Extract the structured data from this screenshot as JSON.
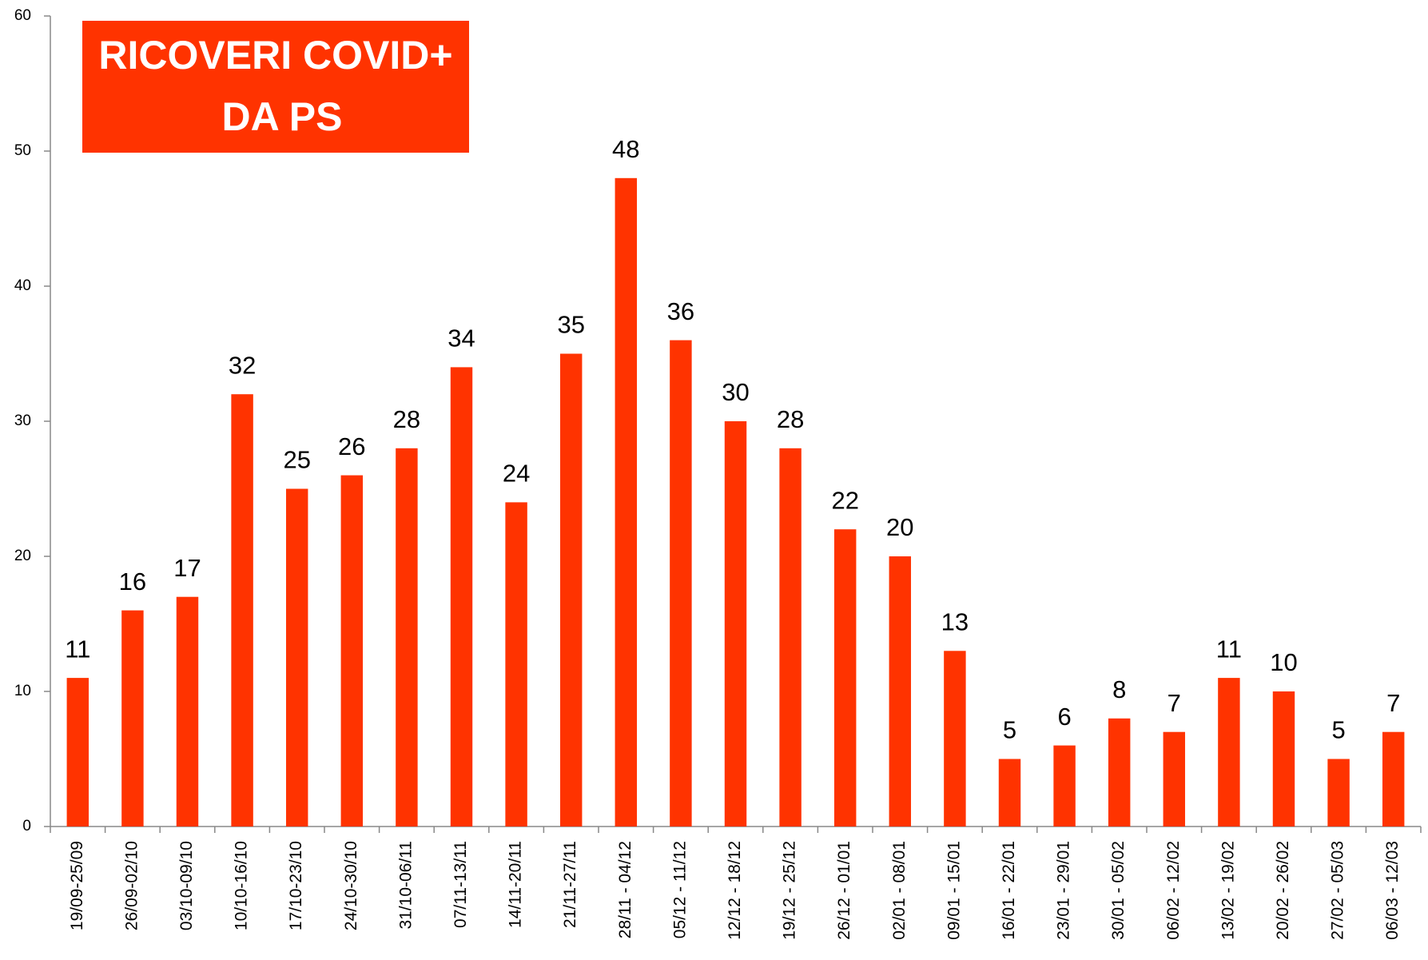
{
  "chart_data": {
    "type": "bar",
    "title": [
      "RICOVERI COVID+",
      "DA PS"
    ],
    "categories": [
      "19/09-25/09",
      "26/09-02/10",
      "03/10-09/10",
      "10/10-16/10",
      "17/10-23/10",
      "24/10-30/10",
      "31/10-06/11",
      "07/11-13/11",
      "14/11-20/11",
      "21/11-27/11",
      "28/11 - 04/12",
      "05/12 - 11/12",
      "12/12 - 18/12",
      "19/12 - 25/12",
      "26/12 - 01/01",
      "02/01 - 08/01",
      "09/01 - 15/01",
      "16/01 - 22/01",
      "23/01 - 29/01",
      "30/01 - 05/02",
      "06/02 - 12/02",
      "13/02 - 19/02",
      "20/02 - 26/02",
      "27/02 - 05/03",
      "06/03 - 12/03"
    ],
    "values": [
      11,
      16,
      17,
      32,
      25,
      26,
      28,
      34,
      24,
      35,
      48,
      36,
      30,
      28,
      22,
      20,
      13,
      5,
      6,
      8,
      7,
      11,
      10,
      5,
      7
    ],
    "color": "#ff3300",
    "title_color": "#ff3300",
    "ylim": [
      0,
      60
    ],
    "yticks": [
      0,
      10,
      20,
      30,
      40,
      50,
      60
    ],
    "grid": false
  }
}
